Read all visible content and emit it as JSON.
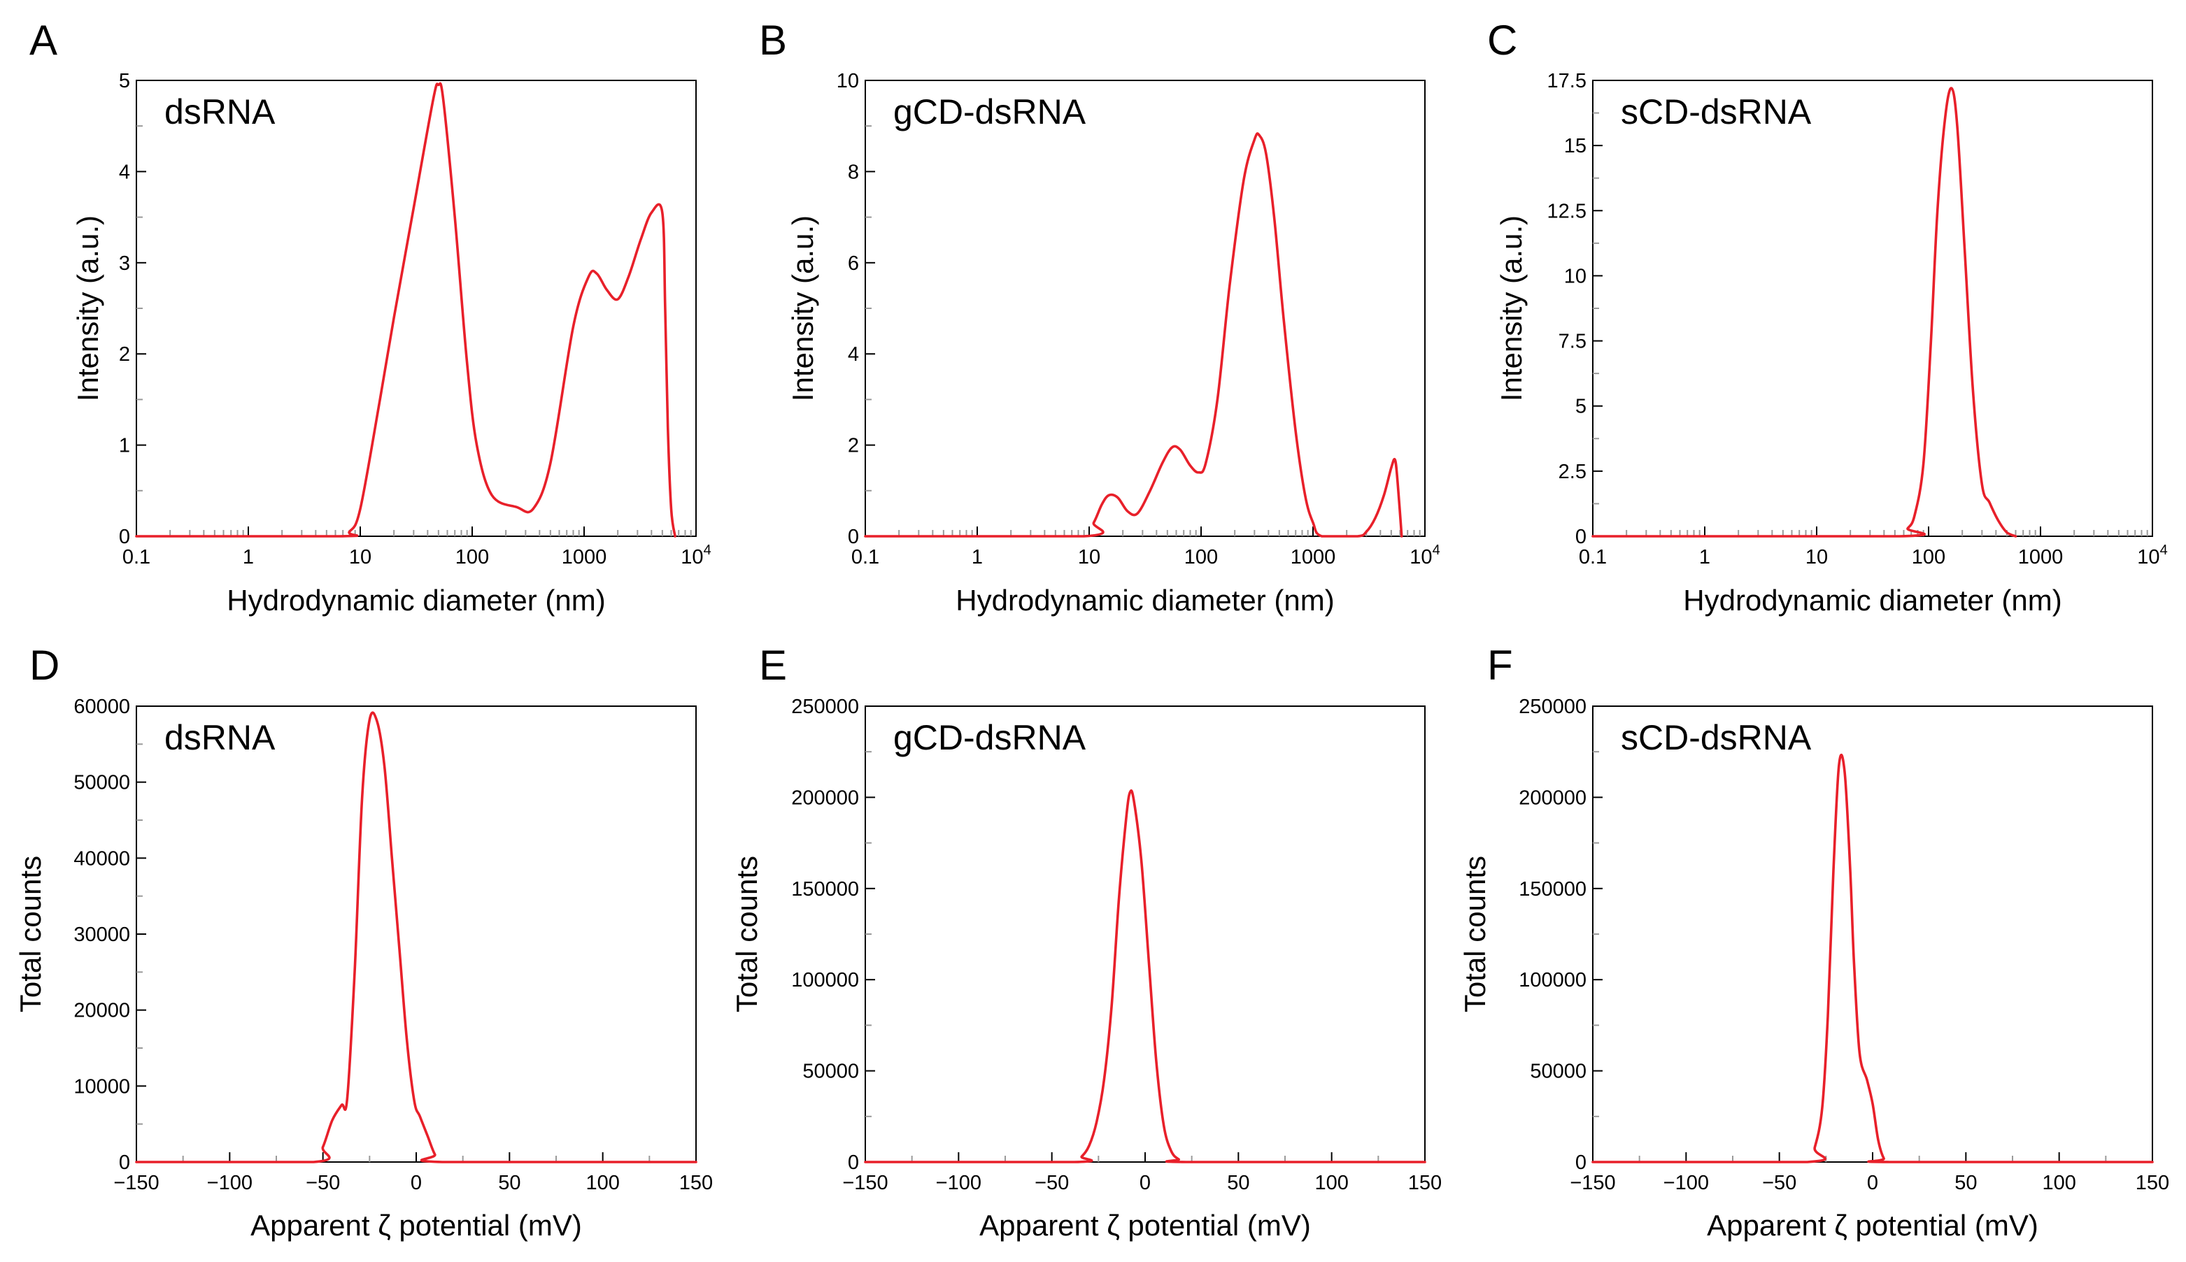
{
  "colors": {
    "series": "#e8202a",
    "axis": "#000000",
    "minor_tick": "#9a9a9a",
    "background": "#ffffff"
  },
  "chart_data": [
    {
      "panel": "A",
      "type": "line",
      "label": "dsRNA",
      "xlabel": "Hydrodynamic diameter (nm)",
      "ylabel": "Intensity (a.u.)",
      "xscale": "log",
      "xlim": [
        0.1,
        10000
      ],
      "ylim": [
        0,
        5
      ],
      "grid": false,
      "xticks": [
        {
          "label": "0.1",
          "v": 0.1
        },
        {
          "label": "1",
          "v": 1
        },
        {
          "label": "10",
          "v": 10
        },
        {
          "label": "100",
          "v": 100
        },
        {
          "label": "1000",
          "v": 1000
        },
        {
          "label": "10",
          "sup": "4",
          "v": 10000
        }
      ],
      "yticks": [
        {
          "label": "0",
          "v": 0
        },
        {
          "label": "1",
          "v": 1
        },
        {
          "label": "2",
          "v": 2
        },
        {
          "label": "3",
          "v": 3
        },
        {
          "label": "4",
          "v": 4
        },
        {
          "label": "5",
          "v": 5
        }
      ],
      "x": [
        0.1,
        6.5,
        8,
        10,
        15,
        20,
        30,
        45,
        50,
        55,
        70,
        90,
        110,
        150,
        250,
        350,
        500,
        800,
        1100,
        1300,
        1600,
        2000,
        2500,
        3200,
        4000,
        5000,
        5300,
        5600,
        6000,
        6500
      ],
      "y": [
        0,
        0,
        0.05,
        0.3,
        1.5,
        2.4,
        3.6,
        4.8,
        4.95,
        4.8,
        3.5,
        1.9,
        1.0,
        0.45,
        0.32,
        0.3,
        0.8,
        2.3,
        2.85,
        2.88,
        2.7,
        2.6,
        2.85,
        3.25,
        3.55,
        3.55,
        2.5,
        1.2,
        0.3,
        0
      ]
    },
    {
      "panel": "B",
      "type": "line",
      "label": "gCD-dsRNA",
      "xlabel": "Hydrodynamic diameter (nm)",
      "ylabel": "Intensity (a.u.)",
      "xscale": "log",
      "xlim": [
        0.1,
        10000
      ],
      "ylim": [
        0,
        10
      ],
      "grid": false,
      "xticks": [
        {
          "label": "0.1",
          "v": 0.1
        },
        {
          "label": "1",
          "v": 1
        },
        {
          "label": "10",
          "v": 10
        },
        {
          "label": "100",
          "v": 100
        },
        {
          "label": "1000",
          "v": 1000
        },
        {
          "label": "10",
          "sup": "4",
          "v": 10000
        }
      ],
      "yticks": [
        {
          "label": "0",
          "v": 0
        },
        {
          "label": "2",
          "v": 2
        },
        {
          "label": "4",
          "v": 4
        },
        {
          "label": "6",
          "v": 6
        },
        {
          "label": "8",
          "v": 8
        },
        {
          "label": "10",
          "v": 10
        }
      ],
      "x": [
        0.1,
        9,
        11,
        13,
        15,
        18,
        22,
        27,
        35,
        45,
        55,
        65,
        80,
        95,
        110,
        140,
        180,
        240,
        300,
        330,
        380,
        450,
        550,
        700,
        850,
        1000,
        1200,
        2500,
        3000,
        3600,
        4300,
        5000,
        5400,
        5700,
        6200
      ],
      "y": [
        0,
        0,
        0.3,
        0.7,
        0.9,
        0.85,
        0.55,
        0.5,
        1.0,
        1.6,
        1.95,
        1.9,
        1.55,
        1.4,
        1.6,
        3.0,
        5.5,
        7.8,
        8.7,
        8.8,
        8.4,
        7.0,
        4.7,
        2.3,
        0.9,
        0.3,
        0,
        0,
        0.1,
        0.4,
        0.9,
        1.5,
        1.68,
        1.2,
        0
      ]
    },
    {
      "panel": "C",
      "type": "line",
      "label": "sCD-dsRNA",
      "xlabel": "Hydrodynamic diameter (nm)",
      "ylabel": "Intensity (a.u.)",
      "xscale": "log",
      "xlim": [
        0.1,
        10000
      ],
      "ylim": [
        0,
        17.5
      ],
      "grid": false,
      "xticks": [
        {
          "label": "0.1",
          "v": 0.1
        },
        {
          "label": "1",
          "v": 1
        },
        {
          "label": "10",
          "v": 10
        },
        {
          "label": "100",
          "v": 100
        },
        {
          "label": "1000",
          "v": 1000
        },
        {
          "label": "10",
          "sup": "4",
          "v": 10000
        }
      ],
      "yticks": [
        {
          "label": "0",
          "v": 0
        },
        {
          "label": "2.5",
          "v": 2.5
        },
        {
          "label": "5",
          "v": 5
        },
        {
          "label": "7.5",
          "v": 7.5
        },
        {
          "label": "10",
          "v": 10
        },
        {
          "label": "12.5",
          "v": 12.5
        },
        {
          "label": "15",
          "v": 15
        },
        {
          "label": "17.5",
          "v": 17.5
        }
      ],
      "x": [
        0.1,
        55,
        65,
        75,
        90,
        105,
        120,
        140,
        160,
        180,
        210,
        250,
        300,
        350,
        420,
        500,
        600
      ],
      "y": [
        0,
        0,
        0.3,
        0.8,
        2.8,
        7.5,
        12.5,
        16,
        17.2,
        15.8,
        11,
        5.5,
        2,
        1.3,
        0.6,
        0.15,
        0
      ]
    },
    {
      "panel": "D",
      "type": "line",
      "label": "dsRNA",
      "xlabel": "Apparent ζ potential (mV)",
      "ylabel": "Total counts",
      "xscale": "linear",
      "xlim": [
        -150,
        150
      ],
      "ylim": [
        0,
        60000
      ],
      "grid": false,
      "xticks": [
        {
          "label": "−150",
          "v": -150
        },
        {
          "label": "−100",
          "v": -100
        },
        {
          "label": "−50",
          "v": -50
        },
        {
          "label": "0",
          "v": 0
        },
        {
          "label": "50",
          "v": 50
        },
        {
          "label": "100",
          "v": 100
        },
        {
          "label": "150",
          "v": 150
        }
      ],
      "yticks": [
        {
          "label": "0",
          "v": 0
        },
        {
          "label": "10000",
          "v": 10000
        },
        {
          "label": "20000",
          "v": 20000
        },
        {
          "label": "30000",
          "v": 30000
        },
        {
          "label": "40000",
          "v": 40000
        },
        {
          "label": "50000",
          "v": 50000
        },
        {
          "label": "60000",
          "v": 60000
        }
      ],
      "x": [
        -150,
        -55,
        -50,
        -45,
        -40,
        -37,
        -33,
        -29,
        -25,
        -21,
        -17,
        -13,
        -9,
        -5,
        -1,
        2,
        6,
        10,
        14,
        150
      ],
      "y": [
        0,
        0,
        2000,
        5500,
        7500,
        8300,
        25000,
        48000,
        58200,
        58000,
        52000,
        40000,
        28000,
        16000,
        8000,
        6000,
        3500,
        1000,
        0,
        0
      ]
    },
    {
      "panel": "E",
      "type": "line",
      "label": "gCD-dsRNA",
      "xlabel": "Apparent ζ potential (mV)",
      "ylabel": "Total counts",
      "xscale": "linear",
      "xlim": [
        -150,
        150
      ],
      "ylim": [
        0,
        250000
      ],
      "grid": false,
      "xticks": [
        {
          "label": "−150",
          "v": -150
        },
        {
          "label": "−100",
          "v": -100
        },
        {
          "label": "−50",
          "v": -50
        },
        {
          "label": "0",
          "v": 0
        },
        {
          "label": "50",
          "v": 50
        },
        {
          "label": "100",
          "v": 100
        },
        {
          "label": "150",
          "v": 150
        }
      ],
      "yticks": [
        {
          "label": "0",
          "v": 0
        },
        {
          "label": "50000",
          "v": 50000
        },
        {
          "label": "100000",
          "v": 100000
        },
        {
          "label": "150000",
          "v": 150000
        },
        {
          "label": "200000",
          "v": 200000
        },
        {
          "label": "250000",
          "v": 250000
        }
      ],
      "x": [
        -150,
        -38,
        -34,
        -30,
        -26,
        -22,
        -18,
        -14,
        -10,
        -8,
        -6,
        -2,
        2,
        6,
        10,
        14,
        18,
        22,
        150
      ],
      "y": [
        0,
        0,
        3000,
        9000,
        22000,
        45000,
        85000,
        145000,
        190000,
        203000,
        198000,
        165000,
        110000,
        55000,
        20000,
        6000,
        1500,
        0,
        0
      ]
    },
    {
      "panel": "F",
      "type": "line",
      "label": "sCD-dsRNA",
      "xlabel": "Apparent ζ potential (mV)",
      "ylabel": "Total counts",
      "xscale": "linear",
      "xlim": [
        -150,
        150
      ],
      "ylim": [
        0,
        250000
      ],
      "grid": false,
      "xticks": [
        {
          "label": "−150",
          "v": -150
        },
        {
          "label": "−100",
          "v": -100
        },
        {
          "label": "−50",
          "v": -50
        },
        {
          "label": "0",
          "v": 0
        },
        {
          "label": "50",
          "v": 50
        },
        {
          "label": "100",
          "v": 100
        },
        {
          "label": "150",
          "v": 150
        }
      ],
      "yticks": [
        {
          "label": "0",
          "v": 0
        },
        {
          "label": "50000",
          "v": 50000
        },
        {
          "label": "100000",
          "v": 100000
        },
        {
          "label": "150000",
          "v": 150000
        },
        {
          "label": "200000",
          "v": 200000
        },
        {
          "label": "250000",
          "v": 250000
        }
      ],
      "x": [
        -150,
        -35,
        -31,
        -27,
        -24,
        -21,
        -18,
        -15,
        -12,
        -10,
        -7,
        -3,
        0,
        3,
        6,
        9,
        150
      ],
      "y": [
        0,
        0,
        8000,
        30000,
        80000,
        160000,
        218000,
        214000,
        160000,
        110000,
        60000,
        45000,
        32000,
        12000,
        2000,
        0,
        0
      ]
    }
  ]
}
